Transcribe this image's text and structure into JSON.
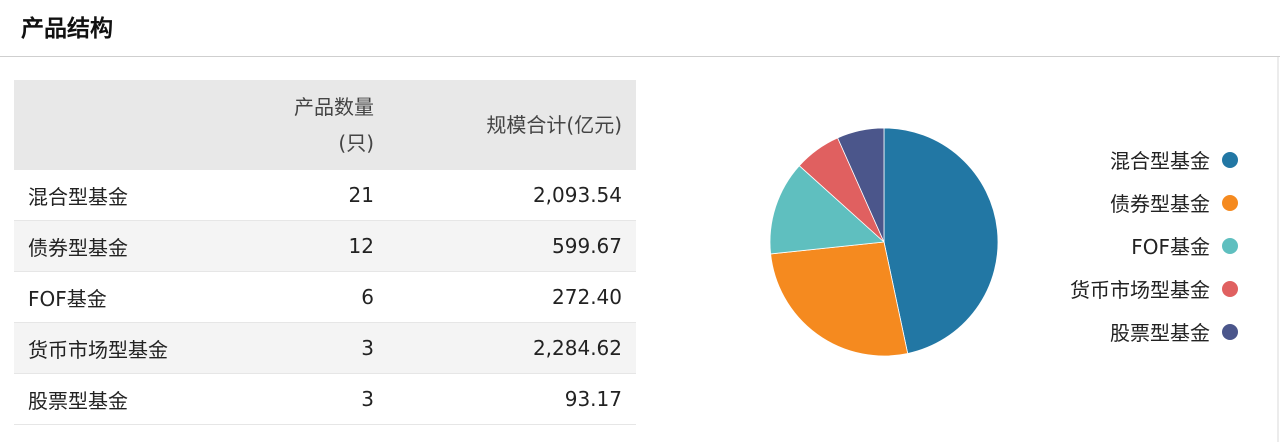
{
  "title": "产品结构",
  "table": {
    "headers": [
      "",
      "产品数量(只)",
      "规模合计(亿元)"
    ],
    "header_count_line1": "产品数量",
    "header_count_line2": "(只)",
    "rows": [
      {
        "name": "混合型基金",
        "count": "21",
        "scale": "2,093.54"
      },
      {
        "name": "债券型基金",
        "count": "12",
        "scale": "599.67"
      },
      {
        "name": "FOF基金",
        "count": "6",
        "scale": "272.40"
      },
      {
        "name": "货币市场型基金",
        "count": "3",
        "scale": "2,284.62"
      },
      {
        "name": "股票型基金",
        "count": "3",
        "scale": "93.17"
      }
    ]
  },
  "chart_data": {
    "type": "pie",
    "categories": [
      "混合型基金",
      "债券型基金",
      "FOF基金",
      "货币市场型基金",
      "股票型基金"
    ],
    "values": [
      21,
      12,
      6,
      3,
      3
    ],
    "colors": [
      "#2277a4",
      "#f58a1f",
      "#5fbfbf",
      "#e06060",
      "#4b568b"
    ],
    "start": "top",
    "direction": "clockwise",
    "legend_position": "right"
  }
}
